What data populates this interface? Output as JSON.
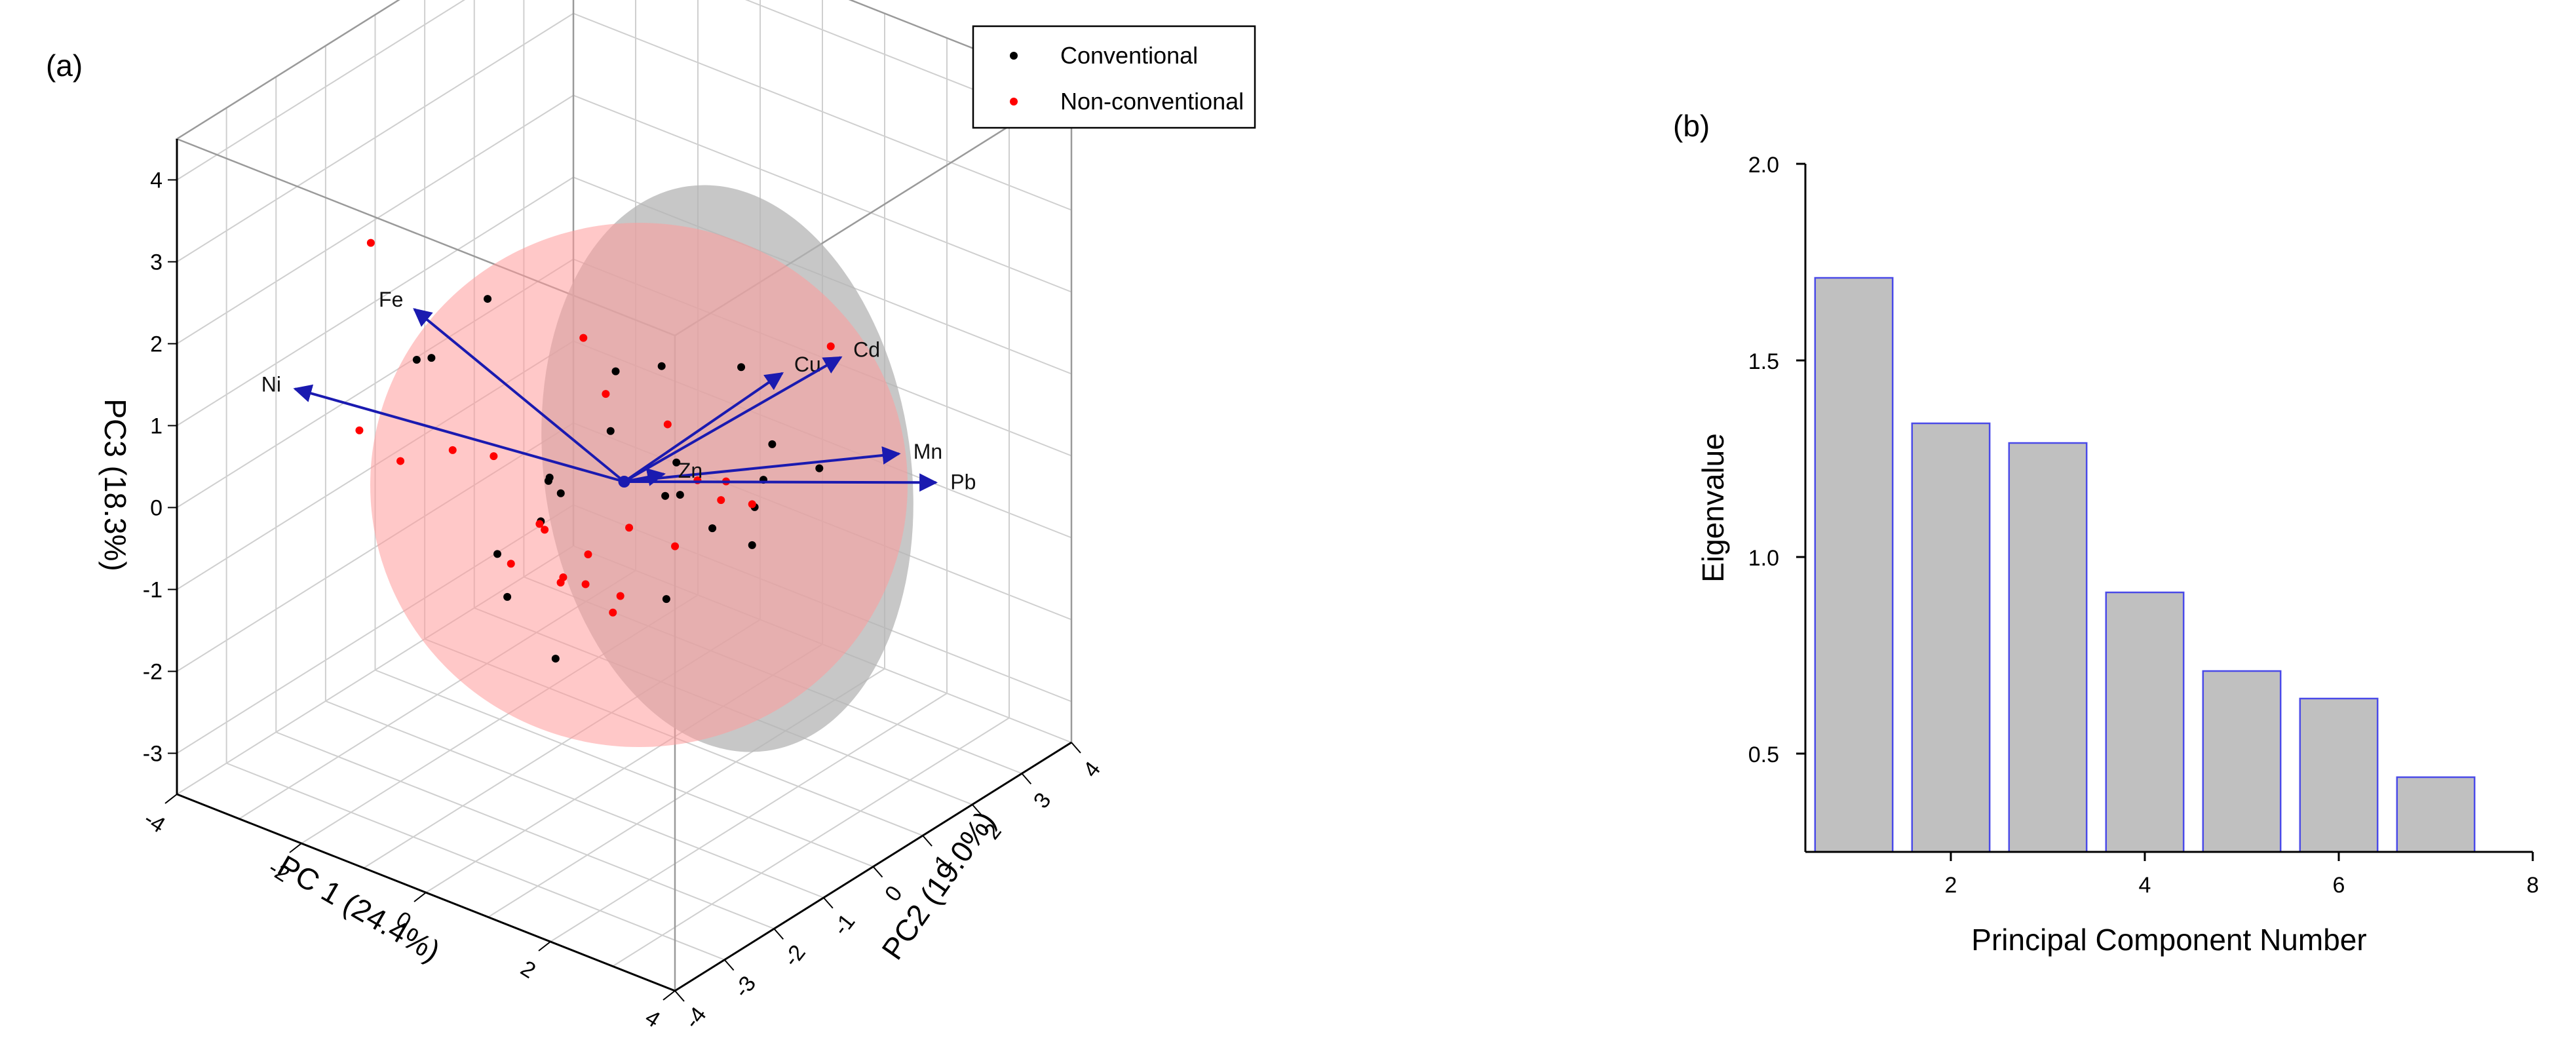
{
  "chart_data": [
    {
      "panel_label": "(a)",
      "type": "scatter",
      "axes": {
        "x": {
          "label": "PC 1 (24.4%)",
          "range": [
            -4,
            4
          ],
          "ticks": [
            "-4",
            "-2",
            "0",
            "2",
            "4"
          ]
        },
        "y": {
          "label": "PC2 (19.0%)",
          "range": [
            -4,
            4
          ],
          "ticks": [
            "-4",
            "-3",
            "-2",
            "-1",
            "0",
            "1",
            "2",
            "3",
            "4"
          ]
        },
        "z": {
          "label": "PC3 (18.3%)",
          "range": [
            -3.5,
            4.5
          ],
          "ticks": [
            "-3",
            "-2",
            "-1",
            "0",
            "1",
            "2",
            "3",
            "4"
          ]
        }
      },
      "grid": true,
      "legend": {
        "placement": "top-right",
        "entries": [
          {
            "name": "Conventional",
            "color": "#000000"
          },
          {
            "name": "Non-conventional",
            "color": "#ff0000"
          }
        ]
      },
      "ellipsoids": [
        {
          "group": "Conventional",
          "color": "#b4b4b4"
        },
        {
          "group": "Non-conventional",
          "color": "#ff9a9a"
        }
      ],
      "loadings_color": "#1a1ab0",
      "loadings": [
        {
          "name": "Fe",
          "x": -1.3,
          "y": -2.6,
          "z": 2.7
        },
        {
          "name": "Ni",
          "x": -2.9,
          "y": -3.0,
          "z": 1.4
        },
        {
          "name": "Cu",
          "x": 2.3,
          "y": 0.3,
          "z": 1.9
        },
        {
          "name": "Cd",
          "x": 3.4,
          "y": 0.1,
          "z": 2.5
        },
        {
          "name": "Mn",
          "x": 3.3,
          "y": 1.4,
          "z": 0.8
        },
        {
          "name": "Pb",
          "x": 2.7,
          "y": 2.9,
          "z": -0.3
        },
        {
          "name": "Zn",
          "x": 0.4,
          "y": 0.3,
          "z": 0.1
        }
      ],
      "series": [
        {
          "name": "Conventional",
          "color": "#000000",
          "points": [
            [
              -1.0,
              -1.5,
              2.5
            ],
            [
              0.5,
              -0.8,
              1.8
            ],
            [
              1.0,
              -0.5,
              1.9
            ],
            [
              1.8,
              0.1,
              1.9
            ],
            [
              -2.3,
              -1.0,
              1.2
            ],
            [
              -1.9,
              -1.8,
              1.6
            ],
            [
              0.1,
              -0.4,
              0.8
            ],
            [
              1.9,
              0.6,
              0.8
            ],
            [
              -0.5,
              -0.9,
              0.2
            ],
            [
              0.6,
              0.3,
              0.3
            ],
            [
              1.6,
              0.8,
              0.2
            ],
            [
              2.1,
              1.3,
              0.3
            ],
            [
              -0.8,
              -0.5,
              0.0
            ],
            [
              -0.7,
              -0.4,
              -0.2
            ],
            [
              0.5,
              0.5,
              -0.2
            ],
            [
              1.3,
              1.0,
              -0.3
            ],
            [
              -1.1,
              -0.3,
              -0.7
            ],
            [
              -1.4,
              -0.8,
              -1.0
            ],
            [
              0.7,
              0.9,
              -0.7
            ],
            [
              1.1,
              1.2,
              -0.9
            ],
            [
              -1.4,
              -0.6,
              -1.6
            ],
            [
              0.2,
              0.6,
              -1.6
            ],
            [
              -1.5,
              0.5,
              -2.8
            ],
            [
              0.5,
              0.2,
              -0.1
            ]
          ]
        },
        {
          "name": "Non-conventional",
          "color": "#ff0000",
          "points": [
            [
              -2.0,
              -2.6,
              3.3
            ],
            [
              0.3,
              -1.2,
              2.3
            ],
            [
              0.5,
              -1.0,
              1.6
            ],
            [
              3.0,
              0.4,
              2.4
            ],
            [
              0.3,
              0.5,
              0.6
            ],
            [
              -2.9,
              -1.7,
              0.4
            ],
            [
              -2.4,
              -1.5,
              0.1
            ],
            [
              -1.8,
              -1.2,
              0.3
            ],
            [
              -1.3,
              -1.0,
              0.3
            ],
            [
              1.0,
              0.8,
              0.0
            ],
            [
              0.7,
              0.6,
              0.0
            ],
            [
              1.1,
              1.2,
              -0.4
            ],
            [
              -0.8,
              -0.6,
              -0.6
            ],
            [
              -1.2,
              -0.2,
              -0.8
            ],
            [
              0.0,
              0.1,
              -0.6
            ],
            [
              -0.5,
              -0.1,
              -1.0
            ],
            [
              -0.7,
              0.1,
              -1.5
            ],
            [
              -0.3,
              0.3,
              -1.6
            ],
            [
              -0.9,
              -0.1,
              -1.4
            ],
            [
              -0.5,
              0.4,
              -1.9
            ],
            [
              -1.5,
              -0.4,
              -1.3
            ],
            [
              -1.1,
              0.1,
              -1.6
            ],
            [
              0.1,
              0.9,
              -1.1
            ],
            [
              0.6,
              1.2,
              -0.5
            ]
          ]
        }
      ]
    },
    {
      "panel_label": "(b)",
      "type": "bar",
      "xlabel": "Principal Component Number",
      "ylabel": "Eigenvalue",
      "xlim": [
        0.5,
        8
      ],
      "ylim": [
        0.25,
        2.0
      ],
      "xticks": [
        2,
        4,
        6,
        8
      ],
      "yticks": [
        "0.5",
        "1.0",
        "1.5",
        "2.0"
      ],
      "bar_fill": "#c0c0c0",
      "bar_edge": "#4a4ae8",
      "x": [
        1,
        2,
        3,
        4,
        5,
        6,
        7
      ],
      "values": [
        1.71,
        1.34,
        1.29,
        0.91,
        0.71,
        0.64,
        0.44
      ]
    }
  ]
}
